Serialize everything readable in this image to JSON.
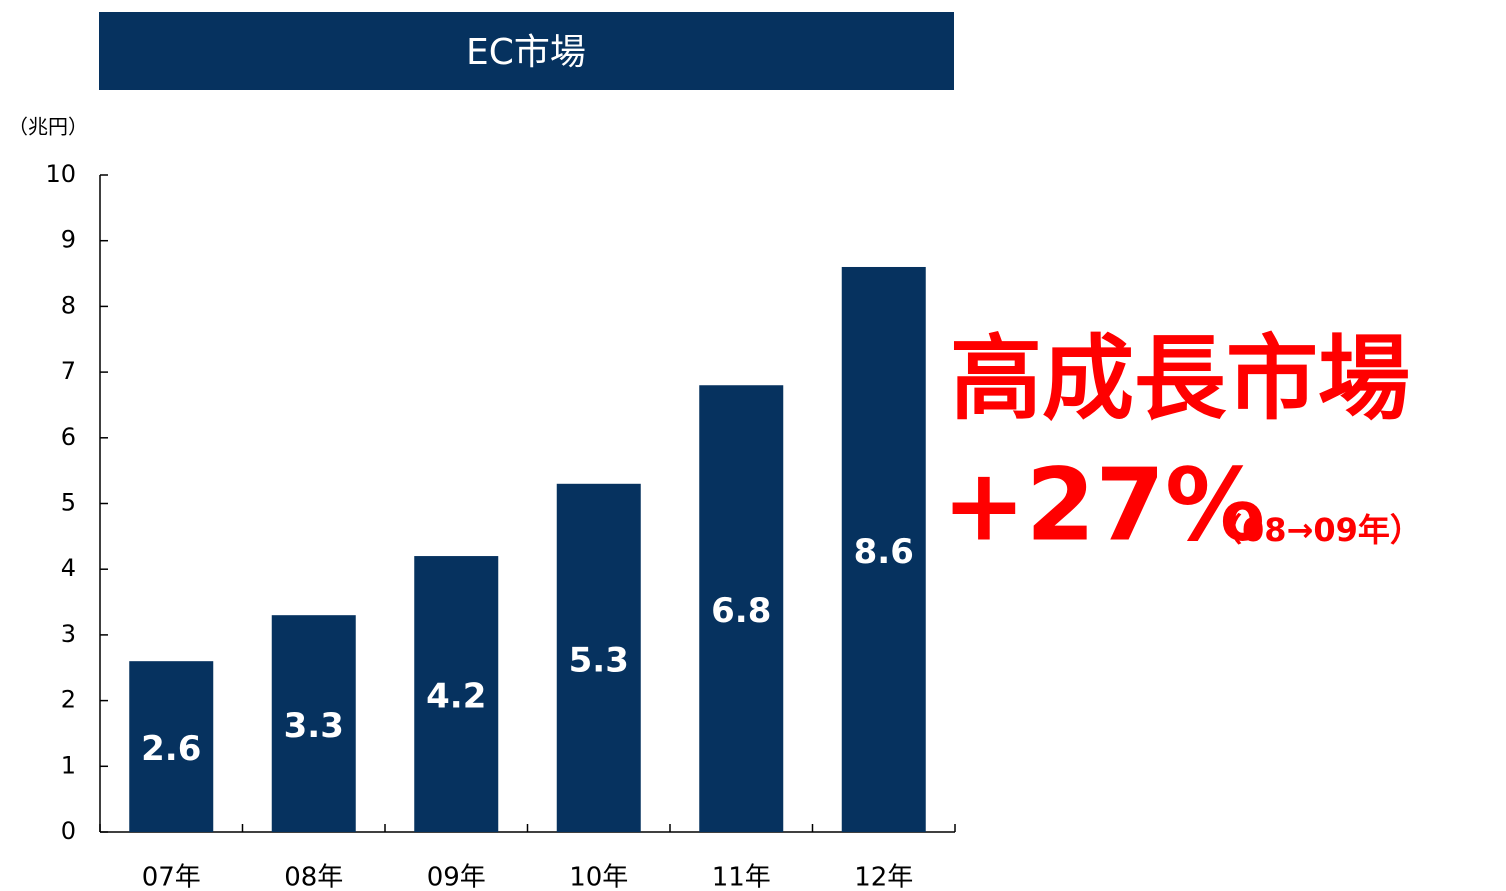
{
  "chart_data": {
    "type": "bar",
    "title": "EC市場",
    "y_label": "（兆円）",
    "categories": [
      "07年",
      "08年",
      "09年",
      "10年",
      "11年",
      "12年"
    ],
    "values": [
      2.6,
      3.3,
      4.2,
      5.3,
      6.8,
      8.6
    ],
    "color": "#06325f",
    "ylim": [
      0,
      10
    ],
    "yticks": [
      0,
      1,
      2,
      3,
      4,
      5,
      6,
      7,
      8,
      9,
      10
    ],
    "annotations": [
      "高成長市場",
      "+27%",
      "（08→09年）"
    ]
  }
}
